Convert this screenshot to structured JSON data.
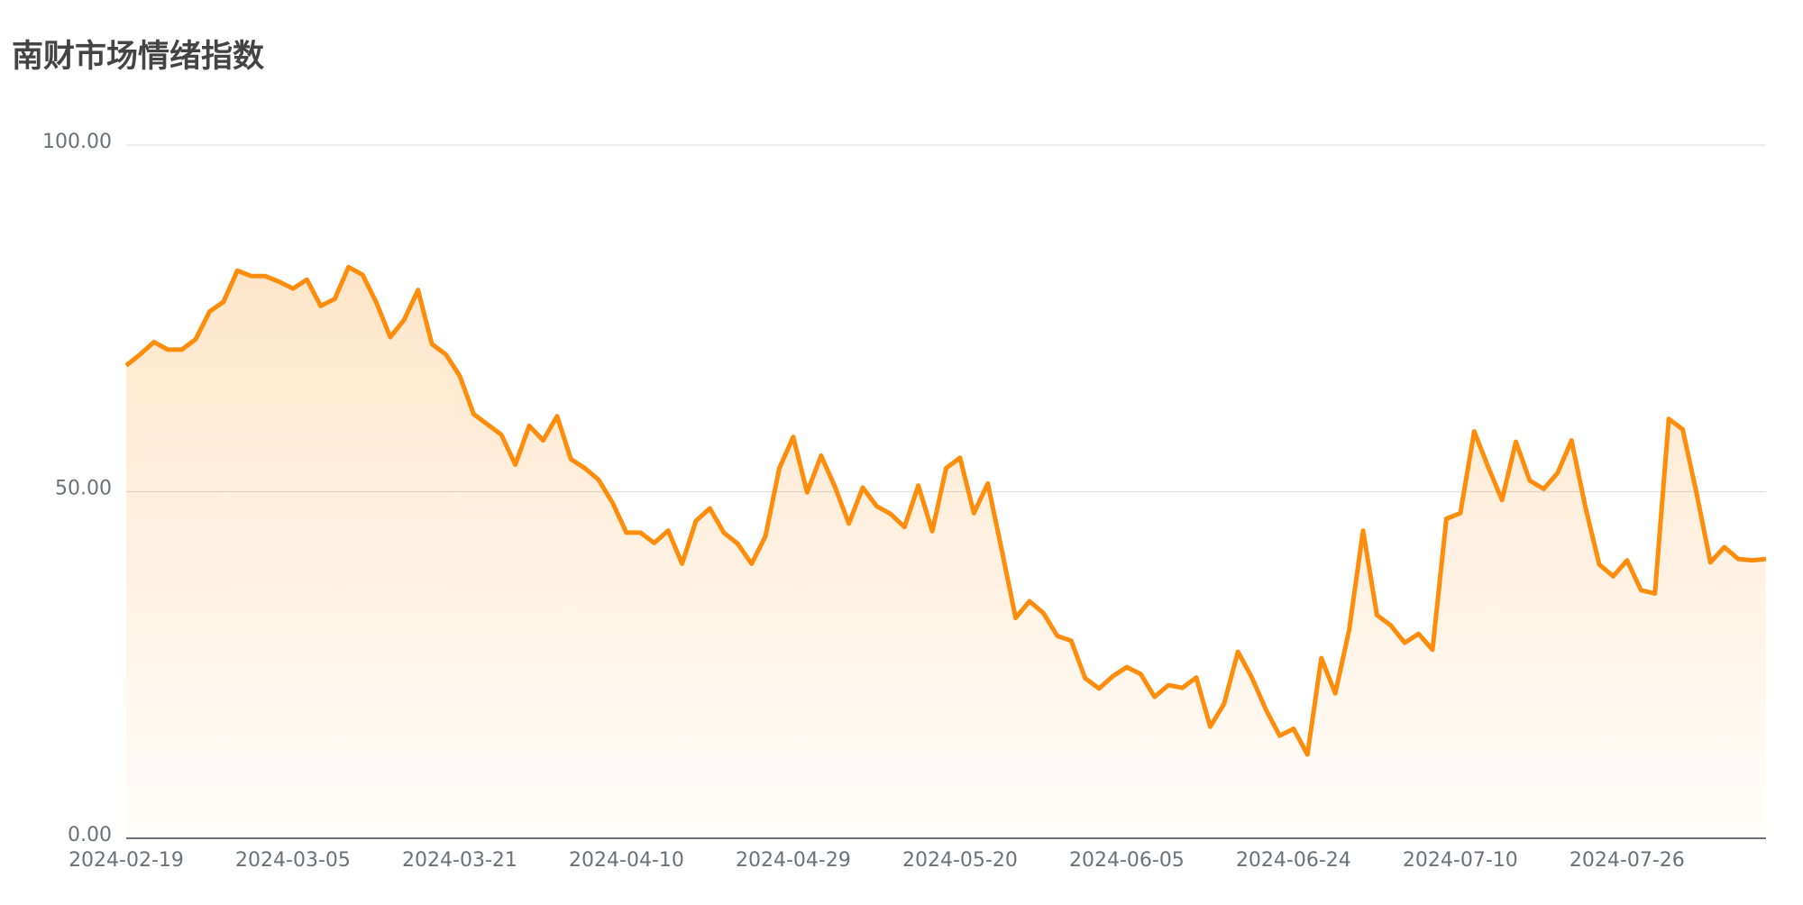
{
  "chart_data": {
    "type": "area_line",
    "title": "南财市场情绪指数",
    "categories": [
      "2024-02-19",
      null,
      null,
      null,
      null,
      null,
      null,
      null,
      null,
      null,
      null,
      null,
      "2024-03-05",
      null,
      null,
      null,
      null,
      null,
      null,
      null,
      null,
      null,
      null,
      null,
      "2024-03-21",
      null,
      null,
      null,
      null,
      null,
      null,
      null,
      null,
      null,
      null,
      null,
      "2024-04-10",
      null,
      null,
      null,
      null,
      null,
      null,
      null,
      null,
      null,
      null,
      null,
      "2024-04-29",
      null,
      null,
      null,
      null,
      null,
      null,
      null,
      null,
      null,
      null,
      null,
      "2024-05-20",
      null,
      null,
      null,
      null,
      null,
      null,
      null,
      null,
      null,
      null,
      null,
      "2024-06-05",
      null,
      null,
      null,
      null,
      null,
      null,
      null,
      null,
      null,
      null,
      null,
      "2024-06-24",
      null,
      null,
      null,
      null,
      null,
      null,
      null,
      null,
      null,
      null,
      null,
      "2024-07-10",
      null,
      null,
      null,
      null,
      null,
      null,
      null,
      null,
      null,
      null,
      null,
      "2024-07-26",
      null,
      null,
      null,
      null,
      null,
      null,
      null,
      null,
      null,
      null
    ],
    "values": [
      68.2,
      69.8,
      71.6,
      70.5,
      70.5,
      72.0,
      76.0,
      77.4,
      81.9,
      81.1,
      81.1,
      80.3,
      79.3,
      80.6,
      76.8,
      77.8,
      82.4,
      81.3,
      77.3,
      72.3,
      74.8,
      79.1,
      71.3,
      69.8,
      66.7,
      61.2,
      59.7,
      58.2,
      53.9,
      59.5,
      57.4,
      60.9,
      54.7,
      53.4,
      51.7,
      48.4,
      44.1,
      44.1,
      42.6,
      44.4,
      39.6,
      45.8,
      47.6,
      44.1,
      42.5,
      39.6,
      43.6,
      53.4,
      57.9,
      49.9,
      55.2,
      50.7,
      45.4,
      50.6,
      47.9,
      46.8,
      44.9,
      50.9,
      44.3,
      53.4,
      54.9,
      46.9,
      51.2,
      41.6,
      31.8,
      34.2,
      32.5,
      29.2,
      28.5,
      23.1,
      21.6,
      23.4,
      24.7,
      23.7,
      20.4,
      22.1,
      21.7,
      23.2,
      16.1,
      19.4,
      26.9,
      23.2,
      18.6,
      14.8,
      15.8,
      12.1,
      26.0,
      20.9,
      30.0,
      44.4,
      32.2,
      30.7,
      28.2,
      29.5,
      27.2,
      46.1,
      46.9,
      58.7,
      53.6,
      48.8,
      57.2,
      51.6,
      50.4,
      52.7,
      57.4,
      47.8,
      39.5,
      37.8,
      40.1,
      35.8,
      35.3,
      60.5,
      59.0,
      49.8,
      39.8,
      42.0,
      40.3,
      40.1,
      40.3
    ],
    "color": "#ff8c0a",
    "ylim": [
      0,
      100
    ],
    "yticks": [
      {
        "value": 0,
        "label": "0.00"
      },
      {
        "value": 50,
        "label": "50.00"
      },
      {
        "value": 100,
        "label": "100.00"
      }
    ],
    "grid": true
  }
}
